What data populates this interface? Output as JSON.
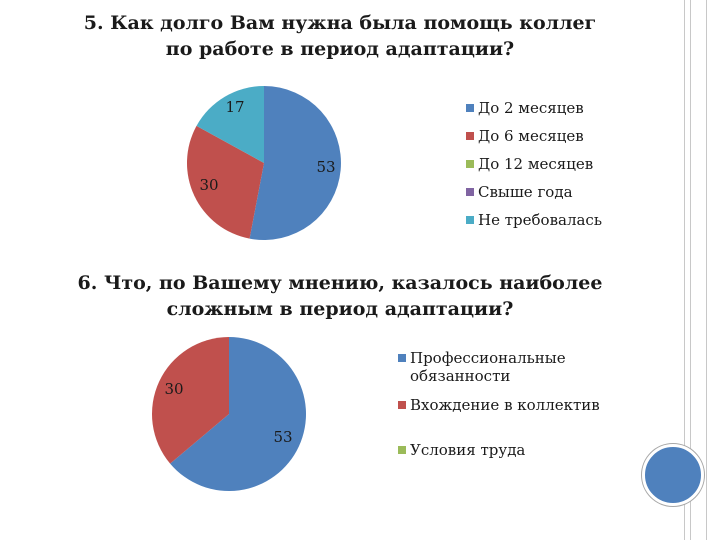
{
  "questions": {
    "q5": {
      "line1": "5. Как долго Вам нужна была помощь коллег",
      "line2": "по работе в период  адаптации?"
    },
    "q6": {
      "line1": "6. Что, по Вашему мнению, казалось наиболее",
      "line2": "сложным в период адаптации?"
    }
  },
  "chart_data": [
    {
      "type": "pie",
      "title": "5. Как долго Вам нужна была помощь коллег по работе в период  адаптации?",
      "categories": [
        "До 2 месяцев",
        "До 6 месяцев",
        "До 12 месяцев",
        "Свыше года",
        "Не требовалась"
      ],
      "values": [
        53,
        30,
        0,
        0,
        17
      ],
      "data_labels": [
        "53",
        "30",
        "",
        "",
        "17"
      ],
      "colors": [
        "#4f81bd",
        "#c0504d",
        "#9bbb59",
        "#8064a2",
        "#4bacc6"
      ],
      "legend_position": "right"
    },
    {
      "type": "pie",
      "title": "6. Что, по Вашему мнению, казалось наиболее сложным в период адаптации?",
      "categories": [
        "Профессиональные обязанности",
        "Вхождение в коллектив",
        "Условия труда"
      ],
      "legend_lines": [
        [
          "Профессиональные",
          "обязанности"
        ],
        [
          "Вхождение в коллектив"
        ],
        [
          "Условия труда"
        ]
      ],
      "values": [
        53,
        30,
        0
      ],
      "data_labels": [
        "53",
        "30",
        ""
      ],
      "colors": [
        "#4f81bd",
        "#c0504d",
        "#9bbb59"
      ],
      "legend_position": "right"
    }
  ]
}
